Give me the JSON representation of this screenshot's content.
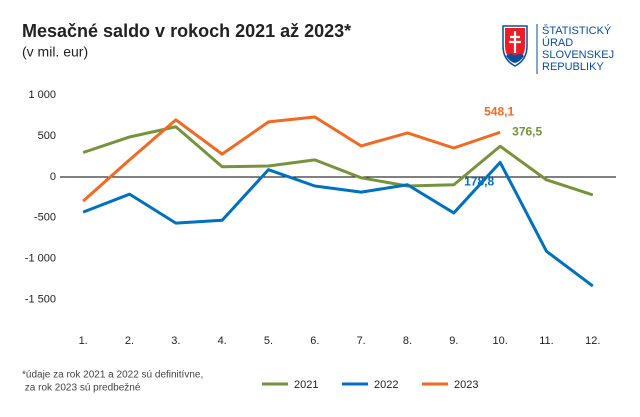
{
  "chart_data": {
    "type": "line",
    "title": "Mesačné saldo v rokoch 2021 až 2023*",
    "subtitle": "(v mil. eur)",
    "footnote": [
      "*údaje za rok 2021 a 2022 sú definitívne,",
      " za rok 2023 sú predbežné"
    ],
    "logo_lines": [
      "ŠTATISTICKÝ",
      "ÚRAD",
      "SLOVENSKEJ",
      "REPUBLIKY"
    ],
    "categories": [
      "1.",
      "2.",
      "3.",
      "4.",
      "5.",
      "6.",
      "7.",
      "8.",
      "9.",
      "10.",
      "11.",
      "12."
    ],
    "series": [
      {
        "name": "2021",
        "color": "#77933c",
        "values": [
          300,
          490,
          615,
          125,
          135,
          210,
          -10,
          -110,
          -95,
          376.5,
          -35,
          -220
        ],
        "value_labels": [
          null,
          null,
          null,
          null,
          null,
          null,
          null,
          null,
          null,
          "376,5",
          null,
          null
        ]
      },
      {
        "name": "2022",
        "color": "#0070c0",
        "values": [
          -430,
          -210,
          -565,
          -530,
          90,
          -110,
          -185,
          -95,
          -440,
          178.8,
          -910,
          -1335
        ],
        "value_labels": [
          null,
          null,
          null,
          null,
          null,
          null,
          null,
          null,
          null,
          "178,8",
          null,
          null
        ]
      },
      {
        "name": "2023",
        "color": "#f26a21",
        "values": [
          -295,
          210,
          700,
          280,
          675,
          735,
          380,
          540,
          355,
          548.1,
          null,
          null
        ],
        "value_labels": [
          null,
          null,
          null,
          null,
          null,
          null,
          null,
          null,
          null,
          "548,1",
          null,
          null
        ]
      }
    ],
    "ylim": [
      -1800,
      1200
    ],
    "yticks": [
      {
        "value": 1000,
        "label": "1 000"
      },
      500,
      0,
      -500,
      {
        "value": -1000,
        "label": "-1 000"
      },
      {
        "value": -1500,
        "label": "-1 500"
      }
    ],
    "grid": false
  }
}
